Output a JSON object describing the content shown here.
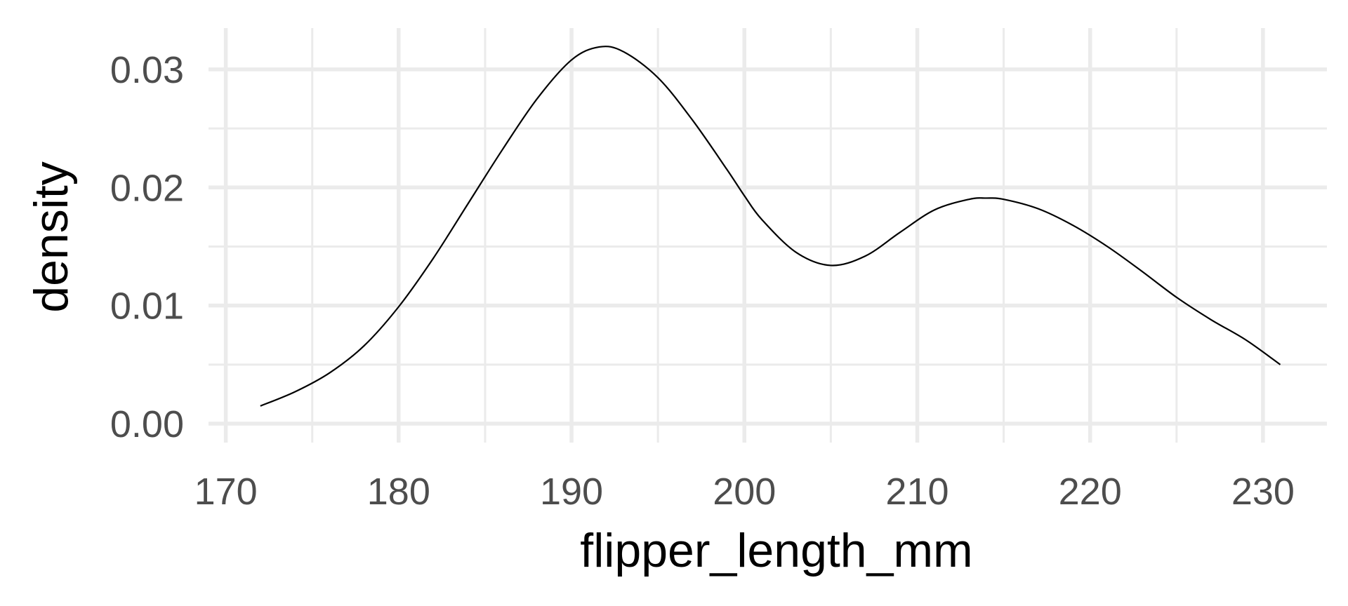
{
  "chart_data": {
    "type": "line",
    "geom": "density",
    "xlabel": "flipper_length_mm",
    "ylabel": "density",
    "xlim": [
      169.0,
      233.7
    ],
    "ylim": [
      -0.0016,
      0.0335
    ],
    "x_ticks": [
      170,
      180,
      190,
      200,
      210,
      220,
      230
    ],
    "x_tick_labels": [
      "170",
      "180",
      "190",
      "200",
      "210",
      "220",
      "230"
    ],
    "x_minor_ticks": [
      175,
      185,
      195,
      205,
      215,
      225
    ],
    "y_ticks": [
      0.0,
      0.01,
      0.02,
      0.03
    ],
    "y_tick_labels": [
      "0.00",
      "0.01",
      "0.02",
      "0.03"
    ],
    "y_minor_ticks": [
      0.005,
      0.015,
      0.025
    ],
    "grid": true,
    "theme": "minimal",
    "line_color": "#000000",
    "grid_color": "#ebebeb",
    "series": [
      {
        "x": [
          172,
          174,
          176,
          178,
          180,
          182,
          184,
          186,
          188,
          190,
          191.6,
          193,
          195,
          197,
          199,
          200,
          201,
          203,
          205,
          207,
          209,
          211,
          213,
          214,
          215,
          217,
          219,
          221,
          223,
          225,
          227,
          229,
          231
        ],
        "y": [
          0.0015,
          0.0027,
          0.0043,
          0.0066,
          0.0099,
          0.014,
          0.0186,
          0.0232,
          0.0275,
          0.0308,
          0.0319,
          0.0315,
          0.0293,
          0.0257,
          0.0215,
          0.0193,
          0.0173,
          0.0145,
          0.0134,
          0.0142,
          0.0162,
          0.0181,
          0.019,
          0.0191,
          0.019,
          0.0182,
          0.0168,
          0.015,
          0.0129,
          0.0107,
          0.0088,
          0.0071,
          0.005
        ]
      }
    ]
  }
}
